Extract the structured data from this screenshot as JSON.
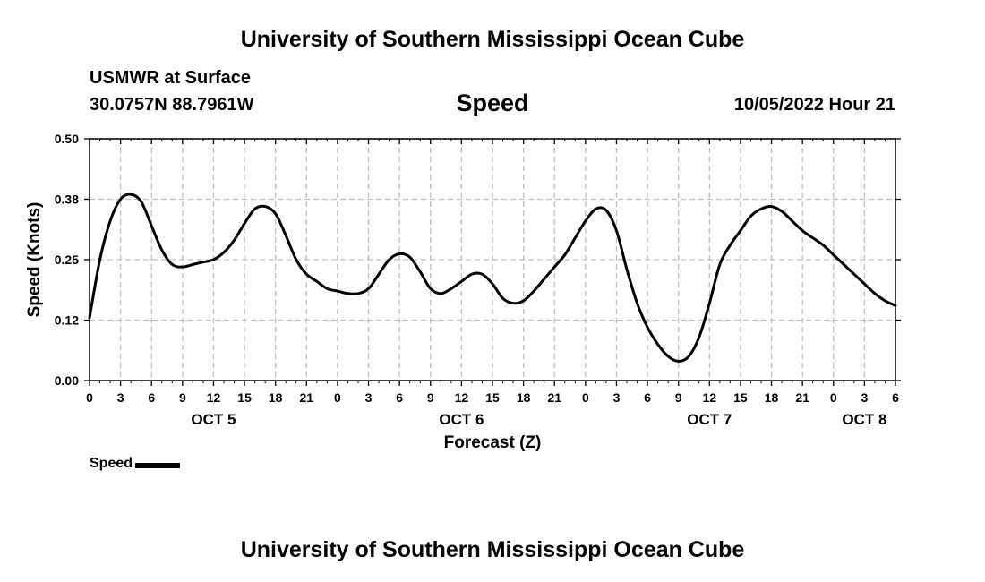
{
  "header": {
    "title": "University of Southern Mississippi Ocean Cube",
    "station_name": "USMWR at Surface",
    "station_coords": "30.0757N  88.7961W",
    "variable": "Speed",
    "forecast_time": "10/05/2022 Hour 21"
  },
  "footer": {
    "title": "University of Southern Mississippi Ocean Cube"
  },
  "legend": {
    "label": "Speed"
  },
  "colors": {
    "line": "#000000",
    "grid": "#c0c0c0"
  },
  "chart_data": {
    "type": "line",
    "title": "Speed",
    "xlabel": "Forecast (Z)",
    "ylabel": "Speed (Knots)",
    "xlim": [
      0,
      78
    ],
    "ylim": [
      0,
      0.5
    ],
    "grid": true,
    "x_unit": "hours since OCT 5 00Z",
    "x_ticks": [
      0,
      3,
      6,
      9,
      12,
      15,
      18,
      21,
      24,
      27,
      30,
      33,
      36,
      39,
      42,
      45,
      48,
      51,
      54,
      57,
      60,
      63,
      66,
      69,
      72,
      75,
      78
    ],
    "x_tick_labels": [
      "0",
      "3",
      "6",
      "9",
      "12",
      "15",
      "18",
      "21",
      "0",
      "3",
      "6",
      "9",
      "12",
      "15",
      "18",
      "21",
      "0",
      "3",
      "6",
      "9",
      "12",
      "15",
      "18",
      "21",
      "0",
      "3",
      "6"
    ],
    "y_ticks": [
      0.0,
      0.125,
      0.25,
      0.375,
      0.5
    ],
    "y_tick_labels": [
      "0.00",
      "0.12",
      "0.25",
      "0.38",
      "0.50"
    ],
    "day_labels": [
      {
        "label": "OCT 5",
        "x": 12
      },
      {
        "label": "OCT 6",
        "x": 36
      },
      {
        "label": "OCT 7",
        "x": 60
      },
      {
        "label": "OCT 8",
        "x": 75
      }
    ],
    "series": [
      {
        "name": "Speed",
        "x": [
          0,
          1,
          2,
          3,
          4,
          5,
          6,
          7,
          8,
          9,
          10,
          11,
          12,
          13,
          14,
          15,
          16,
          17,
          18,
          19,
          20,
          21,
          22,
          23,
          24,
          25,
          26,
          27,
          28,
          29,
          30,
          31,
          32,
          33,
          34,
          35,
          36,
          37,
          38,
          39,
          40,
          41,
          42,
          43,
          44,
          45,
          46,
          47,
          48,
          49,
          50,
          51,
          52,
          53,
          54,
          55,
          56,
          57,
          58,
          59,
          60,
          61,
          62,
          63,
          64,
          65,
          66,
          67,
          68,
          69,
          70,
          71,
          72,
          73,
          74,
          75,
          76,
          77,
          78
        ],
        "values": [
          0.13,
          0.25,
          0.33,
          0.375,
          0.385,
          0.37,
          0.32,
          0.27,
          0.24,
          0.235,
          0.24,
          0.245,
          0.25,
          0.265,
          0.29,
          0.325,
          0.355,
          0.36,
          0.345,
          0.3,
          0.25,
          0.22,
          0.205,
          0.19,
          0.185,
          0.18,
          0.18,
          0.19,
          0.22,
          0.25,
          0.262,
          0.255,
          0.225,
          0.19,
          0.18,
          0.19,
          0.205,
          0.22,
          0.22,
          0.2,
          0.17,
          0.16,
          0.165,
          0.185,
          0.21,
          0.235,
          0.26,
          0.295,
          0.33,
          0.355,
          0.352,
          0.31,
          0.23,
          0.16,
          0.11,
          0.075,
          0.05,
          0.04,
          0.05,
          0.09,
          0.16,
          0.24,
          0.28,
          0.31,
          0.34,
          0.355,
          0.36,
          0.35,
          0.33,
          0.31,
          0.295,
          0.28,
          0.26,
          0.24,
          0.22,
          0.2,
          0.18,
          0.165,
          0.155
        ]
      }
    ]
  }
}
